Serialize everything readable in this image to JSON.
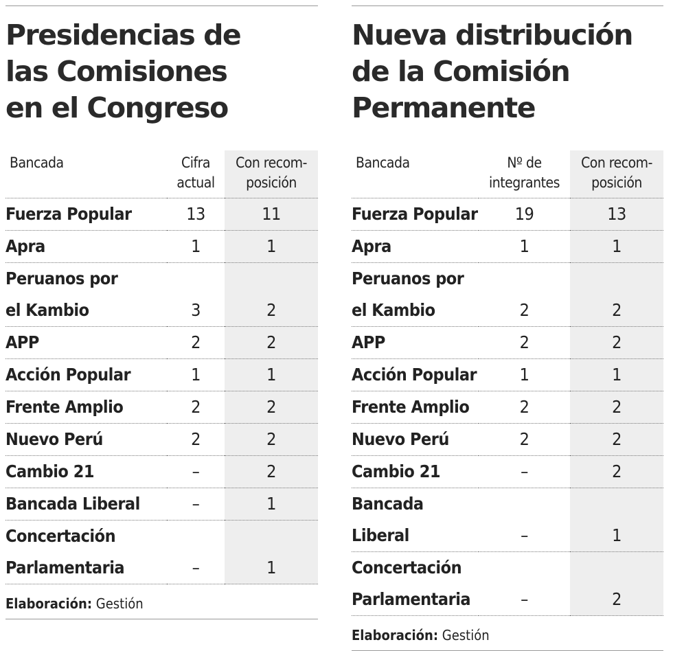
{
  "panels": [
    {
      "title": "Presidencias de\nlas Comisiones\nen el Congreso",
      "headers": [
        "Bancada",
        "Cifra\nactual",
        "Con recom-\nposición"
      ],
      "rows": [
        [
          "Fuerza Popular",
          "13",
          "11"
        ],
        [
          "Apra",
          "1",
          "1"
        ],
        [
          "Peruanos por\nel Kambio",
          "3",
          "2"
        ],
        [
          "APP",
          "2",
          "2"
        ],
        [
          "Acción Popular",
          "1",
          "1"
        ],
        [
          "Frente Amplio",
          "2",
          "2"
        ],
        [
          "Nuevo Perú",
          "2",
          "2"
        ],
        [
          "Cambio 21",
          "–",
          "2"
        ],
        [
          "Bancada Liberal",
          "–",
          "1"
        ],
        [
          "Concertación\nParlamentaria",
          "–",
          "1"
        ]
      ],
      "source_label": "Elaboración:",
      "source": "Gestión"
    },
    {
      "title": "Nueva distribución\nde la Comisión\nPermanente",
      "headers": [
        "Bancada",
        "Nº de\nintegrantes",
        "Con recom-\nposición"
      ],
      "rows": [
        [
          "Fuerza Popular",
          "19",
          "13"
        ],
        [
          "Apra",
          "1",
          "1"
        ],
        [
          "Peruanos por\nel Kambio",
          "2",
          "2"
        ],
        [
          "APP",
          "2",
          "2"
        ],
        [
          "Acción Popular",
          "1",
          "1"
        ],
        [
          "Frente Amplio",
          "2",
          "2"
        ],
        [
          "Nuevo Perú",
          "2",
          "2"
        ],
        [
          "Cambio 21",
          "–",
          "2"
        ],
        [
          "Bancada Liberal",
          "–",
          "1"
        ],
        [
          "Concertación\nParlamentaria",
          "–",
          "2"
        ]
      ],
      "source_label": "Elaboración:",
      "source": "Gestión"
    }
  ]
}
